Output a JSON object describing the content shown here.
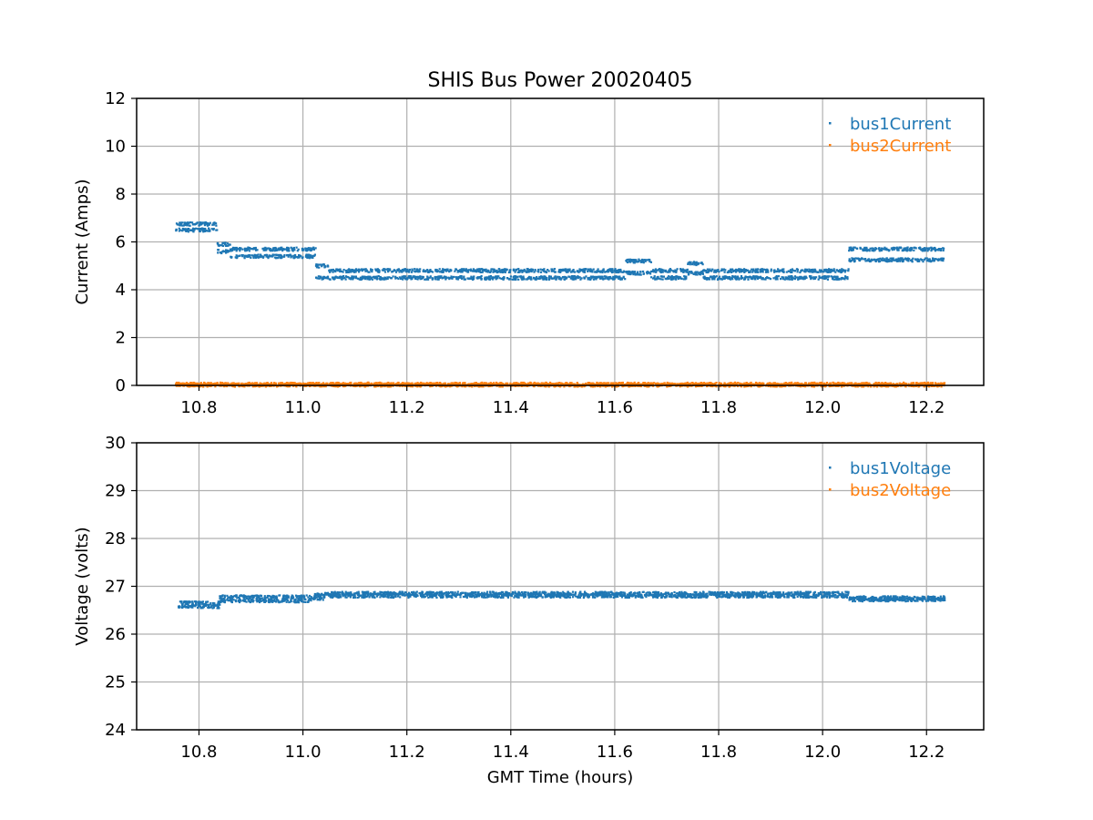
{
  "chart_data": [
    {
      "type": "scatter",
      "title": "SHIS Bus Power 20020405",
      "xlabel": "",
      "ylabel": "Current (Amps)",
      "xlim": [
        10.68,
        12.31
      ],
      "ylim": [
        0,
        12
      ],
      "xticks": [
        "10.8",
        "11.0",
        "11.2",
        "11.4",
        "11.6",
        "11.8",
        "12.0",
        "12.2"
      ],
      "yticks": [
        "0",
        "2",
        "4",
        "6",
        "8",
        "10",
        "12"
      ],
      "grid": true,
      "legend_position": "top-right",
      "series": [
        {
          "name": "bus1Current",
          "color": "#1f77b4",
          "segments": [
            {
              "x": [
                10.755,
                10.835
              ],
              "levels": [
                6.5,
                6.75
              ]
            },
            {
              "x": [
                10.835,
                10.86
              ],
              "levels": [
                5.6,
                5.9
              ]
            },
            {
              "x": [
                10.86,
                11.025
              ],
              "levels": [
                5.4,
                5.7
              ]
            },
            {
              "x": [
                11.025,
                11.05
              ],
              "levels": [
                4.5,
                5.0
              ]
            },
            {
              "x": [
                11.05,
                11.62
              ],
              "levels": [
                4.5,
                4.8
              ]
            },
            {
              "x": [
                11.62,
                11.67
              ],
              "levels": [
                4.7,
                5.2
              ]
            },
            {
              "x": [
                11.67,
                11.74
              ],
              "levels": [
                4.5,
                4.8
              ]
            },
            {
              "x": [
                11.74,
                11.77
              ],
              "levels": [
                4.7,
                5.1
              ]
            },
            {
              "x": [
                11.77,
                12.05
              ],
              "levels": [
                4.5,
                4.8
              ]
            },
            {
              "x": [
                12.05,
                12.235
              ],
              "levels": [
                5.25,
                5.7
              ]
            }
          ]
        },
        {
          "name": "bus2Current",
          "color": "#ff7f0e",
          "segments": [
            {
              "x": [
                10.755,
                12.235
              ],
              "levels": [
                0.02,
                0.05
              ]
            }
          ]
        }
      ]
    },
    {
      "type": "scatter",
      "title": "",
      "xlabel": "GMT Time (hours)",
      "ylabel": "Voltage (volts)",
      "xlim": [
        10.68,
        12.31
      ],
      "ylim": [
        24,
        30
      ],
      "xticks": [
        "10.8",
        "11.0",
        "11.2",
        "11.4",
        "11.6",
        "11.8",
        "12.0",
        "12.2"
      ],
      "yticks": [
        "24",
        "25",
        "26",
        "27",
        "28",
        "29",
        "30"
      ],
      "grid": true,
      "legend_position": "top-right",
      "series": [
        {
          "name": "bus1Voltage",
          "color": "#1f77b4",
          "segments": [
            {
              "x": [
                10.76,
                10.84
              ],
              "levels": [
                26.58,
                26.65
              ]
            },
            {
              "x": [
                10.84,
                11.02
              ],
              "levels": [
                26.7,
                26.78
              ]
            },
            {
              "x": [
                11.02,
                11.04
              ],
              "levels": [
                26.75,
                26.82
              ]
            },
            {
              "x": [
                11.04,
                12.05
              ],
              "levels": [
                26.8,
                26.85
              ]
            },
            {
              "x": [
                12.05,
                12.235
              ],
              "levels": [
                26.72,
                26.76
              ]
            }
          ]
        },
        {
          "name": "bus2Voltage",
          "color": "#ff7f0e",
          "segments": []
        }
      ]
    }
  ]
}
